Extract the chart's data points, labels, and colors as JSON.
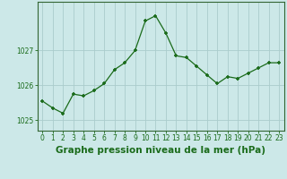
{
  "x": [
    0,
    1,
    2,
    3,
    4,
    5,
    6,
    7,
    8,
    9,
    10,
    11,
    12,
    13,
    14,
    15,
    16,
    17,
    18,
    19,
    20,
    21,
    22,
    23
  ],
  "y": [
    1025.55,
    1025.35,
    1025.2,
    1025.75,
    1025.7,
    1025.85,
    1026.05,
    1026.45,
    1026.65,
    1027.0,
    1027.85,
    1028.0,
    1027.5,
    1026.85,
    1026.8,
    1026.55,
    1026.3,
    1026.05,
    1026.25,
    1026.2,
    1026.35,
    1026.5,
    1026.65,
    1026.65
  ],
  "line_color": "#1a6b1a",
  "marker": "+",
  "marker_size": 3.5,
  "marker_linewidth": 1.2,
  "background_color": "#cce8e8",
  "grid_color": "#aacccc",
  "xlabel": "Graphe pression niveau de la mer (hPa)",
  "xlabel_fontsize": 7.5,
  "yticks": [
    1025,
    1026,
    1027
  ],
  "ylim": [
    1024.7,
    1028.4
  ],
  "xlim": [
    -0.5,
    23.5
  ],
  "xticks": [
    0,
    1,
    2,
    3,
    4,
    5,
    6,
    7,
    8,
    9,
    10,
    11,
    12,
    13,
    14,
    15,
    16,
    17,
    18,
    19,
    20,
    21,
    22,
    23
  ],
  "tick_fontsize": 5.5,
  "spine_color": "#336633"
}
